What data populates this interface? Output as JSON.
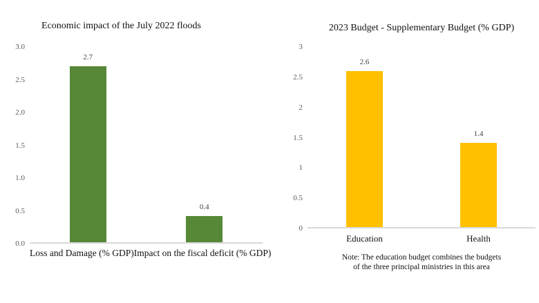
{
  "chart_data": [
    {
      "type": "bar",
      "title": "Economic impact of the July 2022 floods",
      "categories": [
        "Loss and Damage (% GDP)",
        "Impact on the fiscal deficit (% GDP)"
      ],
      "values": [
        2.7,
        0.4
      ],
      "value_labels": [
        "2.7",
        "0.4"
      ],
      "bar_color": "#578838",
      "yticks": [
        "3.0",
        "2.5",
        "2.0",
        "1.5",
        "1.0",
        "0.5",
        "0.0"
      ],
      "ymax": 3.0,
      "ylim": [
        0,
        3.0
      ],
      "xlabel": "",
      "ylabel": "",
      "grid": "off",
      "legend": "none",
      "note": ""
    },
    {
      "type": "bar",
      "title": "2023 Budget - Supplementary Budget (% GDP)",
      "categories": [
        "Education",
        "Health"
      ],
      "values": [
        2.6,
        1.4
      ],
      "value_labels": [
        "2.6",
        "1.4"
      ],
      "bar_color": "#FFC000",
      "yticks": [
        "3",
        "2.5",
        "2",
        "1.5",
        "1",
        "0.5",
        "0"
      ],
      "ymax": 3.0,
      "ylim": [
        0,
        3.0
      ],
      "xlabel": "",
      "ylabel": "",
      "grid": "off",
      "legend": "none",
      "note": "Note: The education budget combines the budgets\nof the three principal ministries in this area"
    }
  ],
  "colors": {
    "background": "#ffffff",
    "axis_line": "#d9d9d9",
    "tick_label": "#595959",
    "value_label": "#404040",
    "left_bar": "#578838",
    "right_bar": "#FFC000"
  }
}
